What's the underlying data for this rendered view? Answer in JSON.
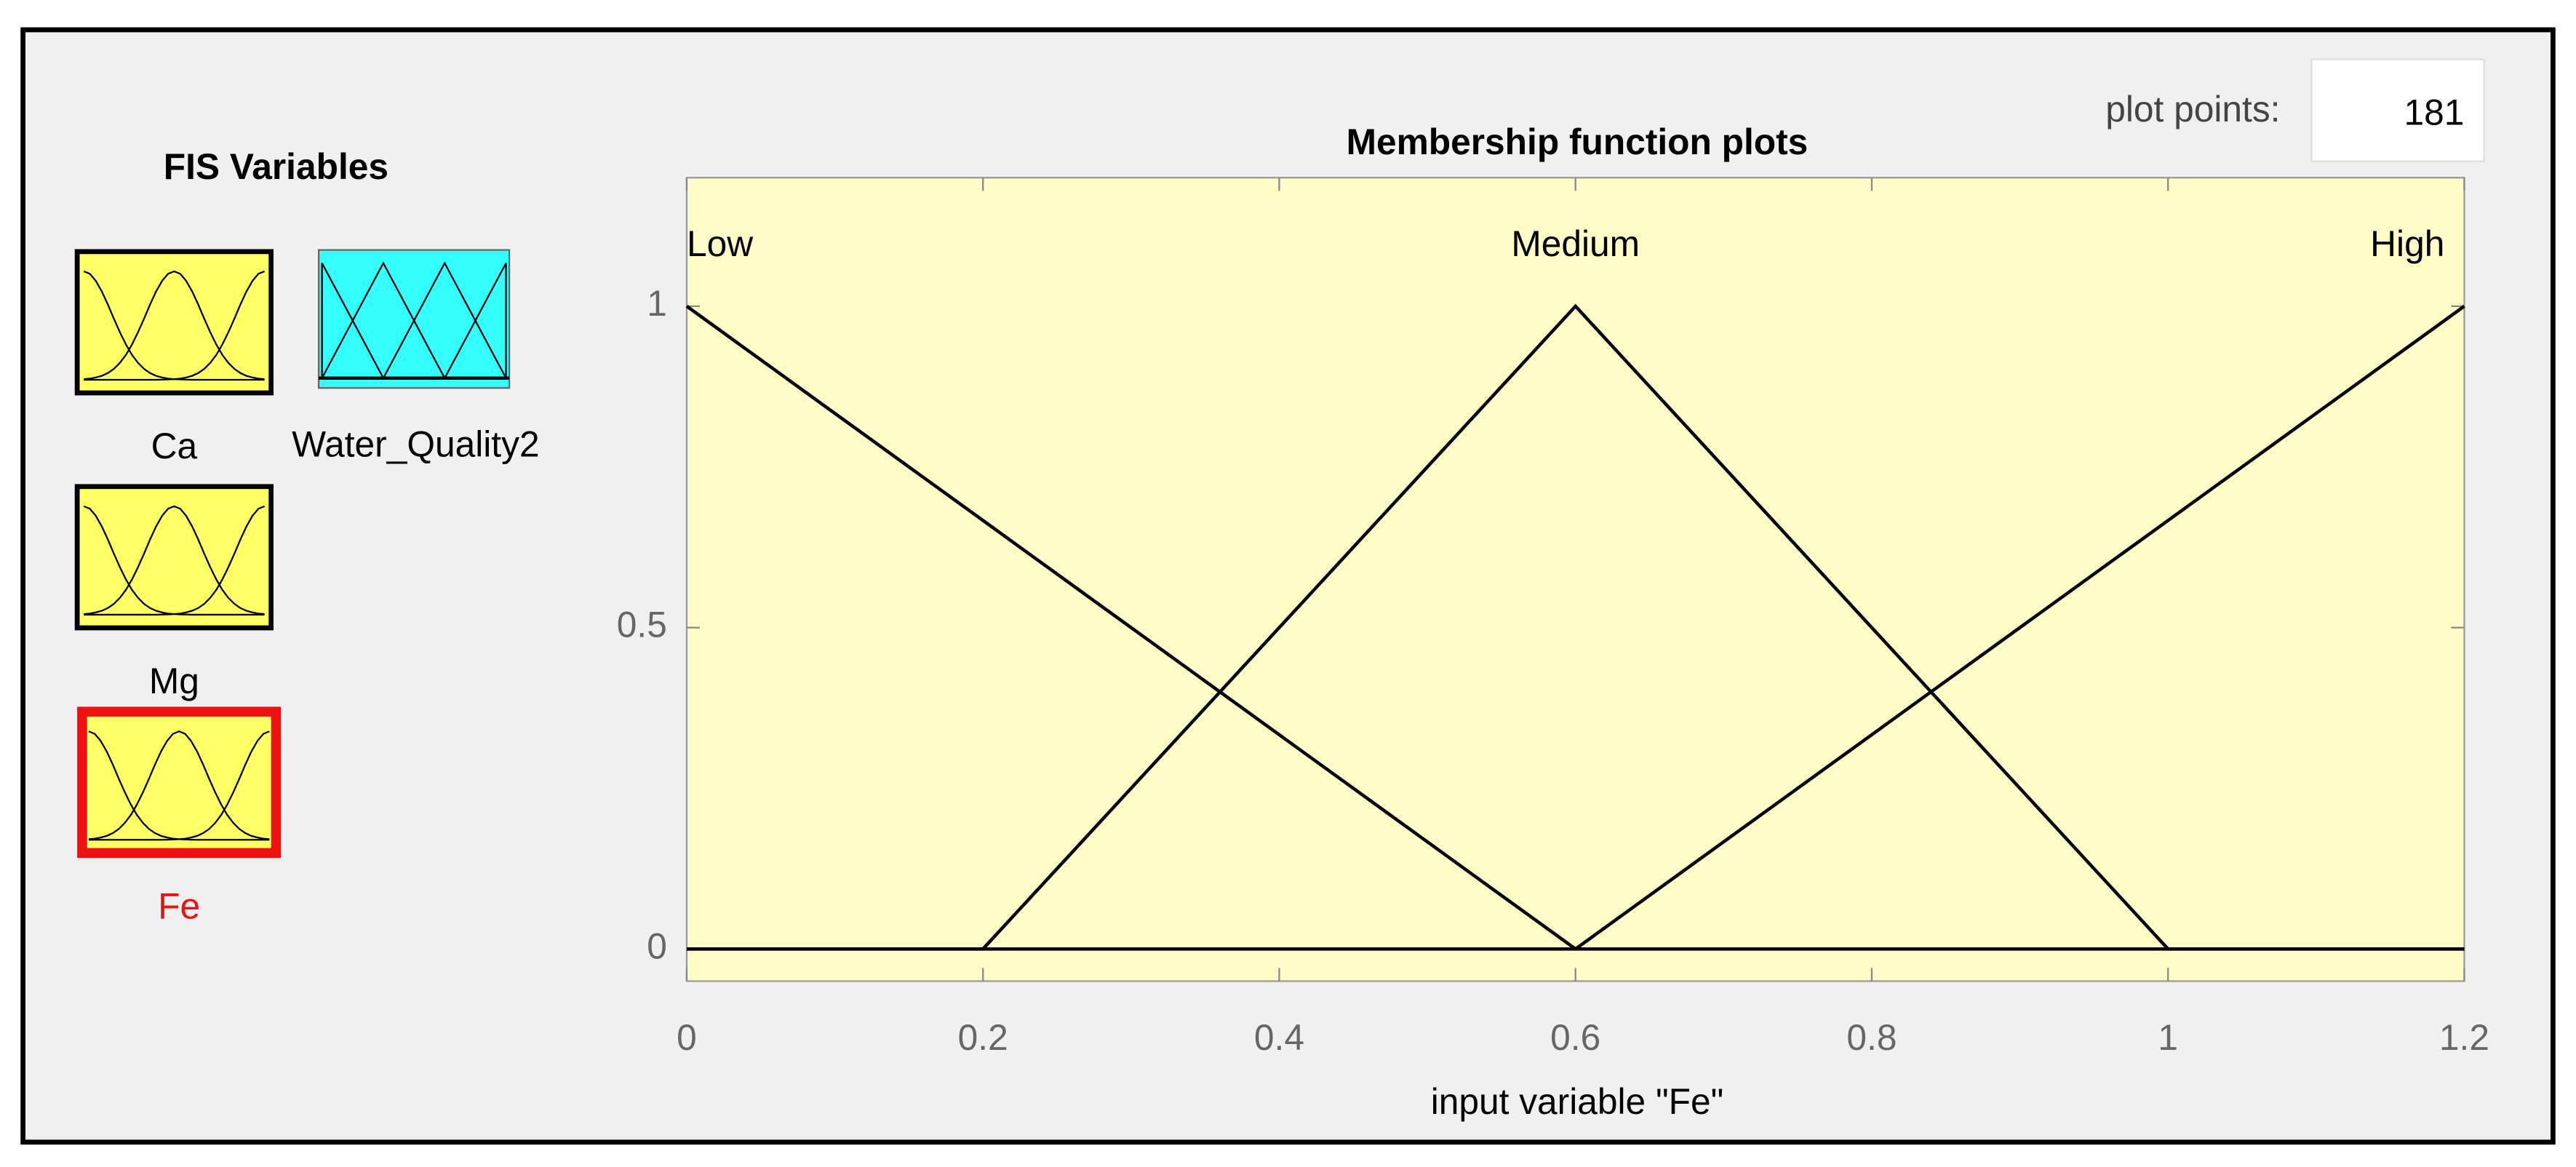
{
  "fis_variables": {
    "title": "FIS Variables",
    "inputs": [
      "Ca",
      "Mg",
      "Fe"
    ],
    "outputs": [
      "Water_Quality2"
    ],
    "selected": "Fe"
  },
  "plot_points": {
    "label": "plot points:",
    "value": 181
  },
  "chart_data": {
    "type": "line",
    "title": "Membership function plots",
    "x_label": "input variable \"Fe\"",
    "series": [
      {
        "name": "Low",
        "color": "#000000",
        "x": [
          0,
          0.6,
          1.2
        ],
        "values": [
          1,
          0,
          0
        ]
      },
      {
        "name": "Medium",
        "color": "#000000",
        "x": [
          0,
          0.2,
          0.6,
          1,
          1.2
        ],
        "values": [
          0,
          0,
          1,
          0,
          0
        ]
      },
      {
        "name": "High",
        "color": "#000000",
        "x": [
          0,
          0.6,
          1.2
        ],
        "values": [
          0,
          0,
          1
        ]
      }
    ],
    "xlim": [
      0,
      1.2
    ],
    "ylim": [
      -0.05,
      1.2
    ],
    "xticks": [
      0,
      0.2,
      0.4,
      0.6,
      0.8,
      1,
      1.2
    ],
    "yticks": [
      0,
      0.5,
      1
    ],
    "grid": false
  }
}
